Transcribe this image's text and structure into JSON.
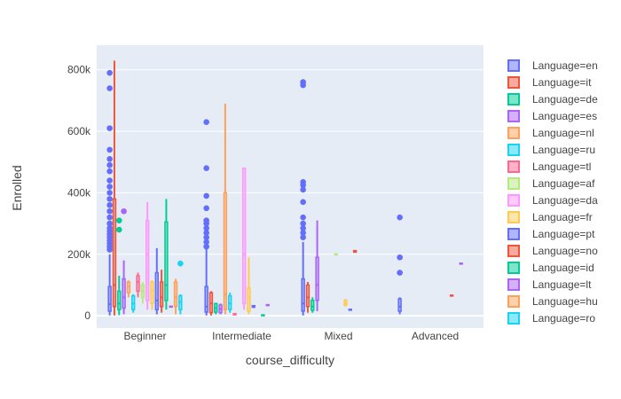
{
  "chart_data": {
    "type": "box",
    "title": "",
    "xlabel": "course_difficulty",
    "ylabel": "Enrolled",
    "categories": [
      "Beginner",
      "Intermediate",
      "Mixed",
      "Advanced"
    ],
    "ylim": [
      -40000,
      880000
    ],
    "yticks": [
      0,
      200000,
      400000,
      600000,
      800000
    ],
    "ytick_labels": [
      "0",
      "200k",
      "400k",
      "600k",
      "800k"
    ],
    "grid": true,
    "legend_position": "right",
    "series": [
      {
        "name": "Language=en",
        "color": "#636efa",
        "boxes": [
          {
            "cat": 0,
            "min": 1000,
            "q1": 15000,
            "median": 38000,
            "q3": 95000,
            "max": 200000,
            "outliers": [
              215000,
              225000,
              235000,
              245000,
              255000,
              265000,
              275000,
              285000,
              300000,
              320000,
              340000,
              360000,
              380000,
              400000,
              420000,
              440000,
              470000,
              490000,
              510000,
              540000,
              610000,
              740000,
              790000
            ]
          },
          {
            "cat": 1,
            "min": 1000,
            "q1": 12000,
            "median": 30000,
            "q3": 95000,
            "max": 220000,
            "outliers": [
              225000,
              240000,
              255000,
              270000,
              285000,
              300000,
              310000,
              350000,
              390000,
              480000,
              630000
            ]
          },
          {
            "cat": 2,
            "min": 1000,
            "q1": 15000,
            "median": 40000,
            "q3": 120000,
            "max": 240000,
            "outliers": [
              255000,
              270000,
              285000,
              300000,
              320000,
              370000,
              410000,
              425000,
              435000,
              750000,
              760000
            ]
          },
          {
            "cat": 3,
            "min": 5000,
            "q1": 15000,
            "median": 30000,
            "q3": 55000,
            "max": 60000,
            "outliers": [
              140000,
              190000,
              320000
            ]
          }
        ]
      },
      {
        "name": "Language=it",
        "color": "#ef553b",
        "boxes": [
          {
            "cat": 0,
            "min": 1000,
            "q1": 30000,
            "median": 100000,
            "q3": 380000,
            "max": 830000,
            "outliers": []
          },
          {
            "cat": 1,
            "min": 1000,
            "q1": 10000,
            "median": 40000,
            "q3": 75000,
            "max": 80000,
            "outliers": []
          },
          {
            "cat": 2,
            "min": 10000,
            "q1": 30000,
            "median": 60000,
            "q3": 100000,
            "max": 110000,
            "outliers": []
          }
        ]
      },
      {
        "name": "Language=de",
        "color": "#00cc96",
        "boxes": [
          {
            "cat": 0,
            "min": 2000,
            "q1": 20000,
            "median": 40000,
            "q3": 80000,
            "max": 130000,
            "outliers": [
              280000,
              310000
            ]
          },
          {
            "cat": 1,
            "min": 5000,
            "q1": 12000,
            "median": 25000,
            "q3": 40000,
            "max": 42000,
            "outliers": []
          },
          {
            "cat": 2,
            "min": 10000,
            "q1": 18000,
            "median": 30000,
            "q3": 50000,
            "max": 60000,
            "outliers": []
          }
        ]
      },
      {
        "name": "Language=es",
        "color": "#ab63fa",
        "boxes": [
          {
            "cat": 0,
            "min": 5000,
            "q1": 25000,
            "median": 60000,
            "q3": 120000,
            "max": 180000,
            "outliers": [
              340000
            ]
          },
          {
            "cat": 1,
            "min": 5000,
            "q1": 10000,
            "median": 22000,
            "q3": 35000,
            "max": 40000,
            "outliers": []
          },
          {
            "cat": 2,
            "min": 15000,
            "q1": 50000,
            "median": 100000,
            "q3": 190000,
            "max": 310000,
            "outliers": []
          }
        ]
      },
      {
        "name": "Language=nl",
        "color": "#ffa15a",
        "boxes": [
          {
            "cat": 0,
            "min": 60000,
            "q1": 75000,
            "median": 95000,
            "q3": 110000,
            "max": 115000,
            "outliers": []
          },
          {
            "cat": 1,
            "min": 5000,
            "q1": 20000,
            "median": 70000,
            "q3": 400000,
            "max": 690000,
            "outliers": []
          }
        ]
      },
      {
        "name": "Language=ru",
        "color": "#19d3f3",
        "boxes": [
          {
            "cat": 0,
            "min": 10000,
            "q1": 20000,
            "median": 40000,
            "q3": 65000,
            "max": 70000,
            "outliers": []
          },
          {
            "cat": 1,
            "min": 10000,
            "q1": 20000,
            "median": 40000,
            "q3": 65000,
            "max": 75000,
            "outliers": []
          }
        ]
      },
      {
        "name": "Language=tl",
        "color": "#ff6692",
        "boxes": [
          {
            "cat": 0,
            "min": 60000,
            "q1": 80000,
            "median": 110000,
            "q3": 130000,
            "max": 140000,
            "outliers": []
          },
          {
            "cat": 1,
            "min": 2000,
            "q1": 3000,
            "median": 5000,
            "q3": 7000,
            "max": 8000,
            "outliers": []
          }
        ]
      },
      {
        "name": "Language=af",
        "color": "#b6e880",
        "boxes": [
          {
            "cat": 0,
            "min": 40000,
            "q1": 60000,
            "median": 80000,
            "q3": 100000,
            "max": 110000,
            "outliers": []
          },
          {
            "cat": 2,
            "min": 198000,
            "q1": 199000,
            "median": 200000,
            "q3": 201000,
            "max": 202000,
            "outliers": []
          }
        ]
      },
      {
        "name": "Language=da",
        "color": "#ff97ff",
        "boxes": [
          {
            "cat": 0,
            "min": 20000,
            "q1": 50000,
            "median": 200000,
            "q3": 310000,
            "max": 370000,
            "outliers": []
          },
          {
            "cat": 1,
            "min": 20000,
            "q1": 40000,
            "median": 200000,
            "q3": 480000,
            "max": 480000,
            "outliers": []
          }
        ]
      },
      {
        "name": "Language=fr",
        "color": "#fecb52",
        "boxes": [
          {
            "cat": 0,
            "min": 20000,
            "q1": 40000,
            "median": 80000,
            "q3": 110000,
            "max": 115000,
            "outliers": []
          },
          {
            "cat": 1,
            "min": 5000,
            "q1": 15000,
            "median": 60000,
            "q3": 90000,
            "max": 190000,
            "outliers": []
          },
          {
            "cat": 2,
            "min": 30000,
            "q1": 35000,
            "median": 40000,
            "q3": 50000,
            "max": 55000,
            "outliers": []
          }
        ]
      },
      {
        "name": "Language=pt",
        "color": "#636efa",
        "boxes": [
          {
            "cat": 0,
            "min": 5000,
            "q1": 20000,
            "median": 50000,
            "q3": 140000,
            "max": 220000,
            "outliers": []
          },
          {
            "cat": 1,
            "min": 25000,
            "q1": 28000,
            "median": 30000,
            "q3": 33000,
            "max": 35000,
            "outliers": []
          },
          {
            "cat": 2,
            "min": 18000,
            "q1": 19000,
            "median": 20000,
            "q3": 21000,
            "max": 22000,
            "outliers": []
          }
        ]
      },
      {
        "name": "Language=no",
        "color": "#ef553b",
        "boxes": [
          {
            "cat": 0,
            "min": 10000,
            "q1": 30000,
            "median": 60000,
            "q3": 110000,
            "max": 150000,
            "outliers": []
          },
          {
            "cat": 2,
            "min": 205000,
            "q1": 207000,
            "median": 210000,
            "q3": 212000,
            "max": 214000,
            "outliers": []
          },
          {
            "cat": 3,
            "min": 64000,
            "q1": 65000,
            "median": 66000,
            "q3": 67000,
            "max": 68000,
            "outliers": []
          }
        ]
      },
      {
        "name": "Language=id",
        "color": "#00cc96",
        "boxes": [
          {
            "cat": 0,
            "min": 20000,
            "q1": 50000,
            "median": 100000,
            "q3": 305000,
            "max": 380000,
            "outliers": []
          },
          {
            "cat": 1,
            "min": 500,
            "q1": 1000,
            "median": 2000,
            "q3": 3000,
            "max": 4000,
            "outliers": []
          }
        ]
      },
      {
        "name": "Language=lt",
        "color": "#ab63fa",
        "boxes": [
          {
            "cat": 0,
            "min": 28000,
            "q1": 29000,
            "median": 30000,
            "q3": 31000,
            "max": 32000,
            "outliers": []
          },
          {
            "cat": 1,
            "min": 33000,
            "q1": 34000,
            "median": 35000,
            "q3": 36000,
            "max": 37000,
            "outliers": []
          },
          {
            "cat": 3,
            "min": 168000,
            "q1": 169000,
            "median": 170000,
            "q3": 171000,
            "max": 172000,
            "outliers": []
          }
        ]
      },
      {
        "name": "Language=hu",
        "color": "#ffa15a",
        "boxes": [
          {
            "cat": 0,
            "min": 5000,
            "q1": 30000,
            "median": 60000,
            "q3": 110000,
            "max": 120000,
            "outliers": []
          }
        ]
      },
      {
        "name": "Language=ro",
        "color": "#19d3f3",
        "boxes": [
          {
            "cat": 0,
            "min": 5000,
            "q1": 20000,
            "median": 45000,
            "q3": 65000,
            "max": 70000,
            "outliers": [
              170000
            ]
          }
        ]
      }
    ]
  }
}
